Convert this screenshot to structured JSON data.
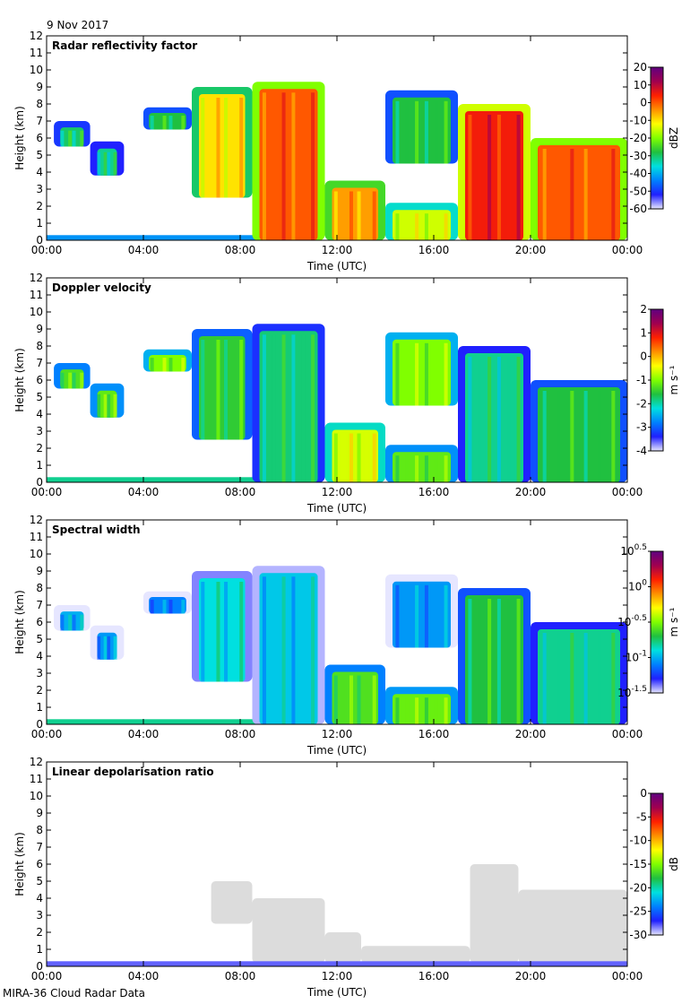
{
  "date": "9 Nov 2017",
  "footer": "MIRA-36 Cloud Radar Data",
  "xlabel": "Time (UTC)",
  "ylabel": "Height (km)",
  "xticks": [
    "00:00",
    "04:00",
    "08:00",
    "12:00",
    "16:00",
    "20:00",
    "00:00"
  ],
  "yticks": [
    "0",
    "1",
    "2",
    "3",
    "4",
    "5",
    "6",
    "7",
    "8",
    "9",
    "10",
    "11",
    "12"
  ],
  "colors": {
    "colormap": [
      "#e6e6ff",
      "#2020ff",
      "#0080ff",
      "#00e0e0",
      "#20c040",
      "#80ff00",
      "#ffff00",
      "#ff9000",
      "#ff2000",
      "#a00050",
      "#600080"
    ],
    "grey_mask": "#dcdcdc"
  },
  "chart_data": [
    {
      "type": "heatmap",
      "title": "Radar reflectivity factor",
      "xlabel": "Time (UTC)",
      "ylabel": "Height (km)",
      "xlim": [
        0,
        24
      ],
      "ylim": [
        0,
        12
      ],
      "colorbar": {
        "label": "dBZ",
        "ticks": [
          "20",
          "10",
          "0",
          "-10",
          "-20",
          "-30",
          "-40",
          "-50",
          "-60"
        ],
        "range": [
          -60,
          20
        ]
      },
      "cloud_regions": [
        {
          "t_start": 0.3,
          "t_end": 1.8,
          "base_km": 5.5,
          "top_km": 7.0,
          "value": -30
        },
        {
          "t_start": 1.8,
          "t_end": 3.2,
          "base_km": 3.8,
          "top_km": 5.8,
          "value": -32
        },
        {
          "t_start": 4.0,
          "t_end": 6.0,
          "base_km": 6.5,
          "top_km": 7.8,
          "value": -28
        },
        {
          "t_start": 6.0,
          "t_end": 8.5,
          "base_km": 2.5,
          "top_km": 9.0,
          "value": -10
        },
        {
          "t_start": 8.5,
          "t_end": 11.5,
          "base_km": 0,
          "top_km": 9.3,
          "value": 0
        },
        {
          "t_start": 11.5,
          "t_end": 14.0,
          "base_km": 0,
          "top_km": 3.5,
          "value": -5
        },
        {
          "t_start": 14.0,
          "t_end": 17.0,
          "base_km": 0,
          "top_km": 2.2,
          "value": -15
        },
        {
          "t_start": 14.0,
          "t_end": 17.0,
          "base_km": 4.5,
          "top_km": 8.8,
          "value": -28
        },
        {
          "t_start": 17.0,
          "t_end": 20.0,
          "base_km": 0,
          "top_km": 8.0,
          "value": 5
        },
        {
          "t_start": 20.0,
          "t_end": 24.0,
          "base_km": 0,
          "top_km": 6.0,
          "value": 0
        }
      ]
    },
    {
      "type": "heatmap",
      "title": "Doppler velocity",
      "xlabel": "Time (UTC)",
      "ylabel": "Height (km)",
      "xlim": [
        0,
        24
      ],
      "ylim": [
        0,
        12
      ],
      "colorbar": {
        "label": "m s⁻¹",
        "ticks": [
          "2",
          "1",
          "0",
          "-1",
          "-2",
          "-3",
          "-4"
        ],
        "range": [
          -4,
          2
        ]
      },
      "cloud_regions": [
        {
          "t_start": 0.3,
          "t_end": 1.8,
          "base_km": 5.5,
          "top_km": 7.0,
          "value": -1.3
        },
        {
          "t_start": 1.8,
          "t_end": 3.2,
          "base_km": 3.8,
          "top_km": 5.8,
          "value": -1.2
        },
        {
          "t_start": 4.0,
          "t_end": 6.0,
          "base_km": 6.5,
          "top_km": 7.8,
          "value": -1.0
        },
        {
          "t_start": 6.0,
          "t_end": 8.5,
          "base_km": 2.5,
          "top_km": 9.0,
          "value": -1.5
        },
        {
          "t_start": 8.5,
          "t_end": 11.5,
          "base_km": 0,
          "top_km": 9.3,
          "value": -1.8
        },
        {
          "t_start": 11.5,
          "t_end": 14.0,
          "base_km": 0,
          "top_km": 3.5,
          "value": -0.6
        },
        {
          "t_start": 14.0,
          "t_end": 17.0,
          "base_km": 0,
          "top_km": 2.2,
          "value": -1.2
        },
        {
          "t_start": 14.0,
          "t_end": 17.0,
          "base_km": 4.5,
          "top_km": 8.8,
          "value": -1.0
        },
        {
          "t_start": 17.0,
          "t_end": 20.0,
          "base_km": 0,
          "top_km": 8.0,
          "value": -1.9
        },
        {
          "t_start": 20.0,
          "t_end": 24.0,
          "base_km": 0,
          "top_km": 6.0,
          "value": -1.6
        }
      ]
    },
    {
      "type": "heatmap",
      "title": "Spectral width",
      "xlabel": "Time (UTC)",
      "ylabel": "Height (km)",
      "xlim": [
        0,
        24
      ],
      "ylim": [
        0,
        12
      ],
      "colorbar": {
        "label": "m s⁻¹",
        "ticks": [
          "10^0.5",
          "10^0",
          "10^-0.5",
          "10^-1",
          "10^-1.5"
        ],
        "range": [
          -1.5,
          0.5
        ]
      },
      "cloud_regions": [
        {
          "t_start": 0.3,
          "t_end": 1.8,
          "base_km": 5.5,
          "top_km": 7.0,
          "value": -1.0
        },
        {
          "t_start": 1.8,
          "t_end": 3.2,
          "base_km": 3.8,
          "top_km": 5.8,
          "value": -1.05
        },
        {
          "t_start": 4.0,
          "t_end": 6.0,
          "base_km": 6.5,
          "top_km": 7.8,
          "value": -1.1
        },
        {
          "t_start": 6.0,
          "t_end": 8.5,
          "base_km": 2.5,
          "top_km": 9.0,
          "value": -0.9
        },
        {
          "t_start": 8.5,
          "t_end": 11.5,
          "base_km": 0,
          "top_km": 9.3,
          "value": -0.95
        },
        {
          "t_start": 11.5,
          "t_end": 14.0,
          "base_km": 0,
          "top_km": 3.5,
          "value": -0.6
        },
        {
          "t_start": 14.0,
          "t_end": 17.0,
          "base_km": 0,
          "top_km": 2.2,
          "value": -0.55
        },
        {
          "t_start": 14.0,
          "t_end": 17.0,
          "base_km": 4.5,
          "top_km": 8.8,
          "value": -1.05
        },
        {
          "t_start": 17.0,
          "t_end": 20.0,
          "base_km": 0,
          "top_km": 8.0,
          "value": -0.7
        },
        {
          "t_start": 20.0,
          "t_end": 24.0,
          "base_km": 0,
          "top_km": 6.0,
          "value": -0.8
        }
      ]
    },
    {
      "type": "heatmap",
      "title": "Linear depolarisation ratio",
      "xlabel": "Time (UTC)",
      "ylabel": "Height (km)",
      "xlim": [
        0,
        24
      ],
      "ylim": [
        0,
        12
      ],
      "colorbar": {
        "label": "dB",
        "ticks": [
          "0",
          "-5",
          "-10",
          "-15",
          "-20",
          "-25",
          "-30"
        ],
        "range": [
          -30,
          0
        ]
      },
      "masked_regions": [
        {
          "t_start": 6.8,
          "t_end": 8.5,
          "base_km": 2.5,
          "top_km": 5.0
        },
        {
          "t_start": 8.5,
          "t_end": 11.5,
          "base_km": 0.2,
          "top_km": 4.0
        },
        {
          "t_start": 11.5,
          "t_end": 13.0,
          "base_km": 0.2,
          "top_km": 2.0
        },
        {
          "t_start": 13.0,
          "t_end": 17.5,
          "base_km": 0.2,
          "top_km": 1.2
        },
        {
          "t_start": 17.5,
          "t_end": 19.5,
          "base_km": 0.2,
          "top_km": 6.0
        },
        {
          "t_start": 19.5,
          "t_end": 24.0,
          "base_km": 0.2,
          "top_km": 4.5
        }
      ],
      "surface_band": {
        "top_km": 0.3,
        "value": -28
      }
    }
  ]
}
